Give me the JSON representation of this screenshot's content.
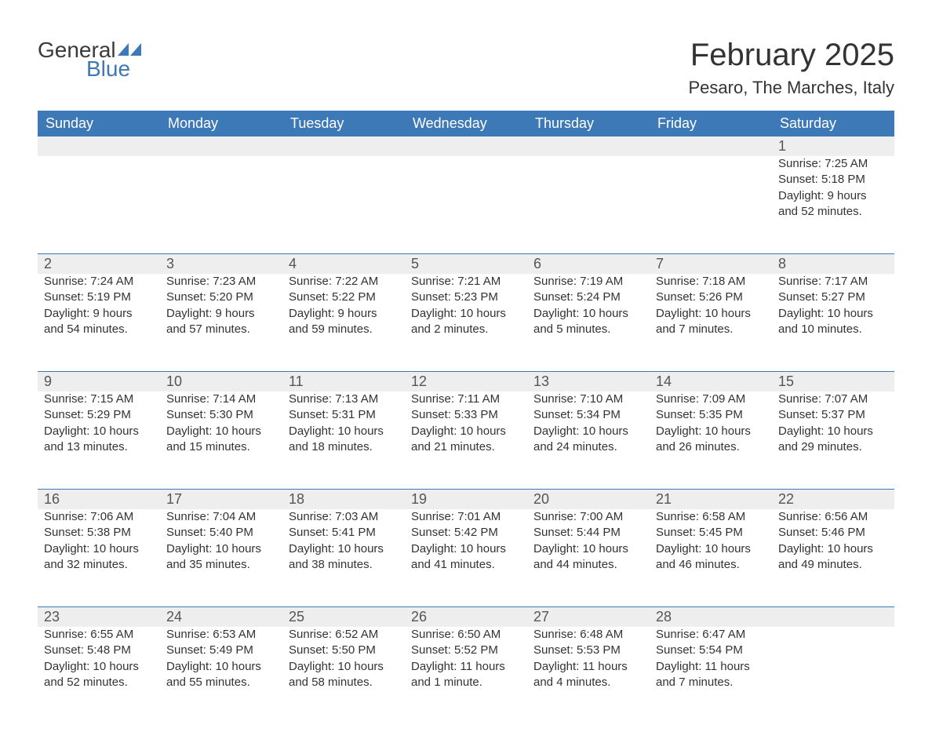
{
  "brand": {
    "part1": "General",
    "part2": "Blue",
    "color_text": "#3a3a3a",
    "color_blue": "#3d79b7"
  },
  "title": "February 2025",
  "location": "Pesaro, The Marches, Italy",
  "colors": {
    "header_bg": "#3d79b7",
    "header_text": "#ffffff",
    "daynum_bg": "#eeeeee",
    "body_text": "#333333",
    "rule": "#3d79b7",
    "page_bg": "#ffffff"
  },
  "typography": {
    "title_fontsize": 40,
    "location_fontsize": 22,
    "dow_fontsize": 18,
    "daynum_fontsize": 18,
    "body_fontsize": 15
  },
  "dow": [
    "Sunday",
    "Monday",
    "Tuesday",
    "Wednesday",
    "Thursday",
    "Friday",
    "Saturday"
  ],
  "weeks": [
    [
      null,
      null,
      null,
      null,
      null,
      null,
      {
        "n": "1",
        "sunrise": "Sunrise: 7:25 AM",
        "sunset": "Sunset: 5:18 PM",
        "daylight1": "Daylight: 9 hours",
        "daylight2": "and 52 minutes."
      }
    ],
    [
      {
        "n": "2",
        "sunrise": "Sunrise: 7:24 AM",
        "sunset": "Sunset: 5:19 PM",
        "daylight1": "Daylight: 9 hours",
        "daylight2": "and 54 minutes."
      },
      {
        "n": "3",
        "sunrise": "Sunrise: 7:23 AM",
        "sunset": "Sunset: 5:20 PM",
        "daylight1": "Daylight: 9 hours",
        "daylight2": "and 57 minutes."
      },
      {
        "n": "4",
        "sunrise": "Sunrise: 7:22 AM",
        "sunset": "Sunset: 5:22 PM",
        "daylight1": "Daylight: 9 hours",
        "daylight2": "and 59 minutes."
      },
      {
        "n": "5",
        "sunrise": "Sunrise: 7:21 AM",
        "sunset": "Sunset: 5:23 PM",
        "daylight1": "Daylight: 10 hours",
        "daylight2": "and 2 minutes."
      },
      {
        "n": "6",
        "sunrise": "Sunrise: 7:19 AM",
        "sunset": "Sunset: 5:24 PM",
        "daylight1": "Daylight: 10 hours",
        "daylight2": "and 5 minutes."
      },
      {
        "n": "7",
        "sunrise": "Sunrise: 7:18 AM",
        "sunset": "Sunset: 5:26 PM",
        "daylight1": "Daylight: 10 hours",
        "daylight2": "and 7 minutes."
      },
      {
        "n": "8",
        "sunrise": "Sunrise: 7:17 AM",
        "sunset": "Sunset: 5:27 PM",
        "daylight1": "Daylight: 10 hours",
        "daylight2": "and 10 minutes."
      }
    ],
    [
      {
        "n": "9",
        "sunrise": "Sunrise: 7:15 AM",
        "sunset": "Sunset: 5:29 PM",
        "daylight1": "Daylight: 10 hours",
        "daylight2": "and 13 minutes."
      },
      {
        "n": "10",
        "sunrise": "Sunrise: 7:14 AM",
        "sunset": "Sunset: 5:30 PM",
        "daylight1": "Daylight: 10 hours",
        "daylight2": "and 15 minutes."
      },
      {
        "n": "11",
        "sunrise": "Sunrise: 7:13 AM",
        "sunset": "Sunset: 5:31 PM",
        "daylight1": "Daylight: 10 hours",
        "daylight2": "and 18 minutes."
      },
      {
        "n": "12",
        "sunrise": "Sunrise: 7:11 AM",
        "sunset": "Sunset: 5:33 PM",
        "daylight1": "Daylight: 10 hours",
        "daylight2": "and 21 minutes."
      },
      {
        "n": "13",
        "sunrise": "Sunrise: 7:10 AM",
        "sunset": "Sunset: 5:34 PM",
        "daylight1": "Daylight: 10 hours",
        "daylight2": "and 24 minutes."
      },
      {
        "n": "14",
        "sunrise": "Sunrise: 7:09 AM",
        "sunset": "Sunset: 5:35 PM",
        "daylight1": "Daylight: 10 hours",
        "daylight2": "and 26 minutes."
      },
      {
        "n": "15",
        "sunrise": "Sunrise: 7:07 AM",
        "sunset": "Sunset: 5:37 PM",
        "daylight1": "Daylight: 10 hours",
        "daylight2": "and 29 minutes."
      }
    ],
    [
      {
        "n": "16",
        "sunrise": "Sunrise: 7:06 AM",
        "sunset": "Sunset: 5:38 PM",
        "daylight1": "Daylight: 10 hours",
        "daylight2": "and 32 minutes."
      },
      {
        "n": "17",
        "sunrise": "Sunrise: 7:04 AM",
        "sunset": "Sunset: 5:40 PM",
        "daylight1": "Daylight: 10 hours",
        "daylight2": "and 35 minutes."
      },
      {
        "n": "18",
        "sunrise": "Sunrise: 7:03 AM",
        "sunset": "Sunset: 5:41 PM",
        "daylight1": "Daylight: 10 hours",
        "daylight2": "and 38 minutes."
      },
      {
        "n": "19",
        "sunrise": "Sunrise: 7:01 AM",
        "sunset": "Sunset: 5:42 PM",
        "daylight1": "Daylight: 10 hours",
        "daylight2": "and 41 minutes."
      },
      {
        "n": "20",
        "sunrise": "Sunrise: 7:00 AM",
        "sunset": "Sunset: 5:44 PM",
        "daylight1": "Daylight: 10 hours",
        "daylight2": "and 44 minutes."
      },
      {
        "n": "21",
        "sunrise": "Sunrise: 6:58 AM",
        "sunset": "Sunset: 5:45 PM",
        "daylight1": "Daylight: 10 hours",
        "daylight2": "and 46 minutes."
      },
      {
        "n": "22",
        "sunrise": "Sunrise: 6:56 AM",
        "sunset": "Sunset: 5:46 PM",
        "daylight1": "Daylight: 10 hours",
        "daylight2": "and 49 minutes."
      }
    ],
    [
      {
        "n": "23",
        "sunrise": "Sunrise: 6:55 AM",
        "sunset": "Sunset: 5:48 PM",
        "daylight1": "Daylight: 10 hours",
        "daylight2": "and 52 minutes."
      },
      {
        "n": "24",
        "sunrise": "Sunrise: 6:53 AM",
        "sunset": "Sunset: 5:49 PM",
        "daylight1": "Daylight: 10 hours",
        "daylight2": "and 55 minutes."
      },
      {
        "n": "25",
        "sunrise": "Sunrise: 6:52 AM",
        "sunset": "Sunset: 5:50 PM",
        "daylight1": "Daylight: 10 hours",
        "daylight2": "and 58 minutes."
      },
      {
        "n": "26",
        "sunrise": "Sunrise: 6:50 AM",
        "sunset": "Sunset: 5:52 PM",
        "daylight1": "Daylight: 11 hours",
        "daylight2": "and 1 minute."
      },
      {
        "n": "27",
        "sunrise": "Sunrise: 6:48 AM",
        "sunset": "Sunset: 5:53 PM",
        "daylight1": "Daylight: 11 hours",
        "daylight2": "and 4 minutes."
      },
      {
        "n": "28",
        "sunrise": "Sunrise: 6:47 AM",
        "sunset": "Sunset: 5:54 PM",
        "daylight1": "Daylight: 11 hours",
        "daylight2": "and 7 minutes."
      },
      null
    ]
  ]
}
